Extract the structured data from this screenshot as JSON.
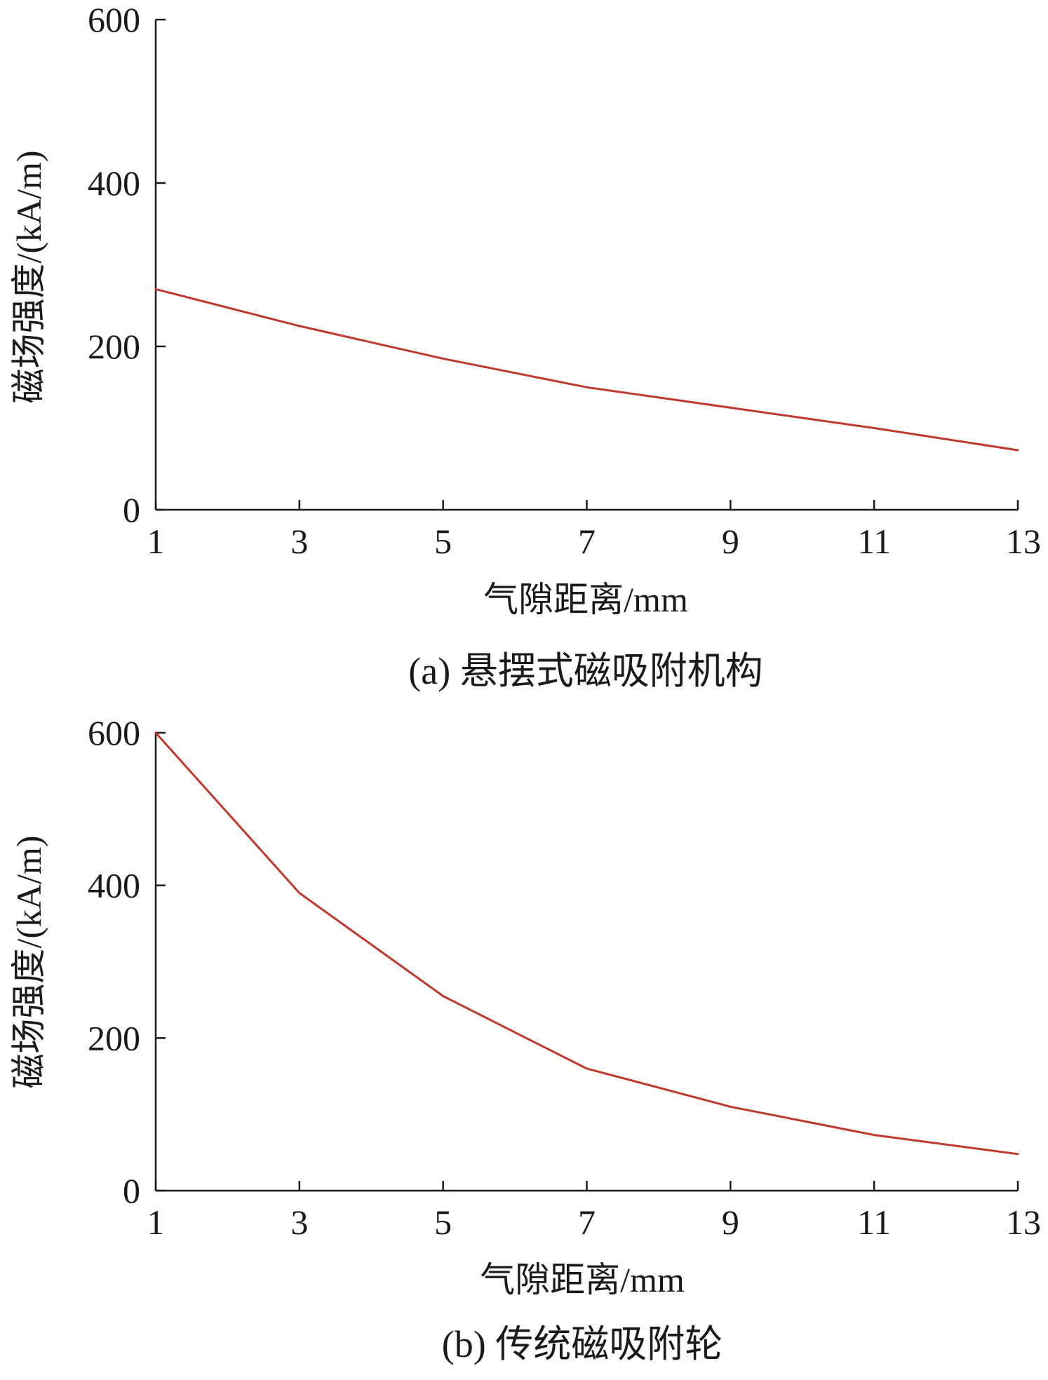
{
  "chart_data": [
    {
      "type": "line",
      "caption": "(a) 悬摆式磁吸附机构",
      "xlabel": "气隙距离/mm",
      "ylabel": "磁场强度/(kA/m)",
      "xlim": [
        1,
        13
      ],
      "ylim": [
        0,
        600
      ],
      "xticks": [
        1,
        3,
        5,
        7,
        9,
        11,
        13
      ],
      "yticks": [
        0,
        200,
        400,
        600
      ],
      "grid": false,
      "series": [
        {
          "color": "#c0392b",
          "x": [
            1,
            3,
            5,
            7,
            9,
            11,
            13
          ],
          "y": [
            270,
            225,
            185,
            150,
            125,
            100,
            73
          ]
        }
      ]
    },
    {
      "type": "line",
      "caption": "(b) 传统磁吸附轮",
      "xlabel": "气隙距离/mm",
      "ylabel": "磁场强度/(kA/m)",
      "xlim": [
        1,
        13
      ],
      "ylim": [
        0,
        600
      ],
      "xticks": [
        1,
        3,
        5,
        7,
        9,
        11,
        13
      ],
      "yticks": [
        0,
        200,
        400,
        600
      ],
      "grid": false,
      "series": [
        {
          "color": "#c0392b",
          "x": [
            1,
            3,
            5,
            7,
            9,
            11,
            13
          ],
          "y": [
            600,
            390,
            255,
            160,
            110,
            73,
            48
          ]
        }
      ]
    }
  ]
}
